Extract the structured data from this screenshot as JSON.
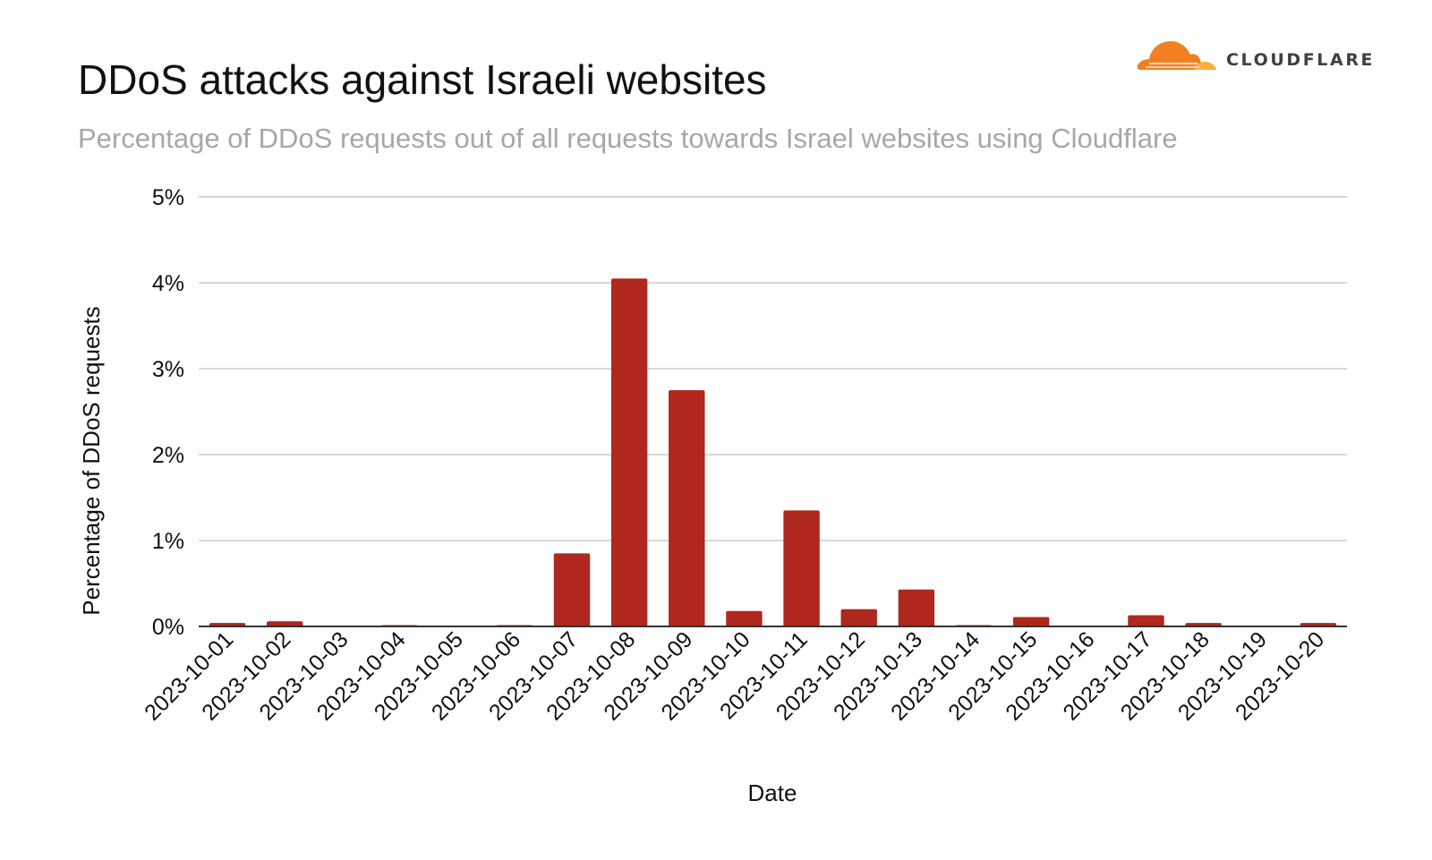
{
  "brand": {
    "name": "CLOUDFLARE",
    "primary_color": "#f38020",
    "secondary_color": "#faae40"
  },
  "chart_data": {
    "type": "bar",
    "title": "DDoS attacks against Israeli websites",
    "subtitle": "Percentage of DDoS requests out of all requests towards Israel websites using Cloudflare",
    "xlabel": "Date",
    "ylabel": "Percentage of DDoS requests",
    "ylim": [
      0,
      5
    ],
    "y_ticks": [
      0,
      1,
      2,
      3,
      4,
      5
    ],
    "y_tick_labels": [
      "0%",
      "1%",
      "2%",
      "3%",
      "4%",
      "5%"
    ],
    "grid": true,
    "legend": "none",
    "bar_color": "#b0271e",
    "categories": [
      "2023-10-01",
      "2023-10-02",
      "2023-10-03",
      "2023-10-04",
      "2023-10-05",
      "2023-10-06",
      "2023-10-07",
      "2023-10-08",
      "2023-10-09",
      "2023-10-10",
      "2023-10-11",
      "2023-10-12",
      "2023-10-13",
      "2023-10-14",
      "2023-10-15",
      "2023-10-16",
      "2023-10-17",
      "2023-10-18",
      "2023-10-19",
      "2023-10-20"
    ],
    "values": [
      0.04,
      0.06,
      0.0,
      0.01,
      0.0,
      0.01,
      0.85,
      4.05,
      2.75,
      0.18,
      1.35,
      0.2,
      0.43,
      0.01,
      0.11,
      0.0,
      0.13,
      0.04,
      0.0,
      0.04
    ]
  }
}
